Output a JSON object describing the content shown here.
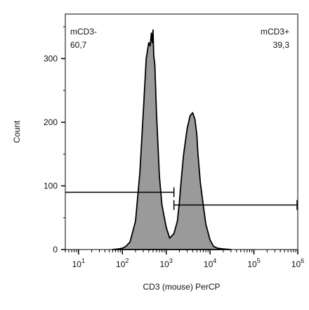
{
  "chart_data": {
    "type": "area",
    "xlabel": "CD3 (mouse) PerCP",
    "ylabel": "Count",
    "x_scale": "log",
    "xlim": [
      5,
      1000000
    ],
    "ylim": [
      0,
      370
    ],
    "x_ticks": [
      {
        "value": 10,
        "base": "10",
        "exp": "1"
      },
      {
        "value": 100,
        "base": "10",
        "exp": "2"
      },
      {
        "value": 1000,
        "base": "10",
        "exp": "3"
      },
      {
        "value": 10000,
        "base": "10",
        "exp": "4"
      },
      {
        "value": 100000,
        "base": "10",
        "exp": "5"
      },
      {
        "value": 1000000,
        "base": "10",
        "exp": "6"
      }
    ],
    "y_ticks": [
      0,
      100,
      200,
      300
    ],
    "fill_color": "#9a9a9a",
    "line_color": "#000000",
    "histogram": {
      "x": [
        60,
        80,
        100,
        120,
        150,
        200,
        250,
        300,
        350,
        400,
        430,
        460,
        480,
        500,
        520,
        550,
        600,
        700,
        800,
        1000,
        1200,
        1500,
        1800,
        2000,
        2200,
        2500,
        3000,
        3500,
        4000,
        4500,
        5000,
        5300,
        5600,
        6000,
        7000,
        8000,
        10000,
        12000,
        15000,
        20000,
        30000
      ],
      "y": [
        0,
        1,
        2,
        5,
        12,
        45,
        120,
        215,
        300,
        325,
        320,
        340,
        325,
        345,
        305,
        290,
        215,
        115,
        70,
        35,
        18,
        25,
        45,
        75,
        110,
        150,
        190,
        210,
        215,
        205,
        180,
        150,
        130,
        105,
        70,
        40,
        15,
        5,
        2,
        1,
        0
      ]
    },
    "gates": [
      {
        "name": "mCD3-",
        "value": "60,7",
        "x_start": 5,
        "x_end": 1500,
        "y": 90,
        "label_position": "top-left"
      },
      {
        "name": "mCD3+",
        "value": "39,3",
        "x_start": 1500,
        "x_end": 1000000,
        "y": 70,
        "label_position": "top-right"
      }
    ]
  }
}
